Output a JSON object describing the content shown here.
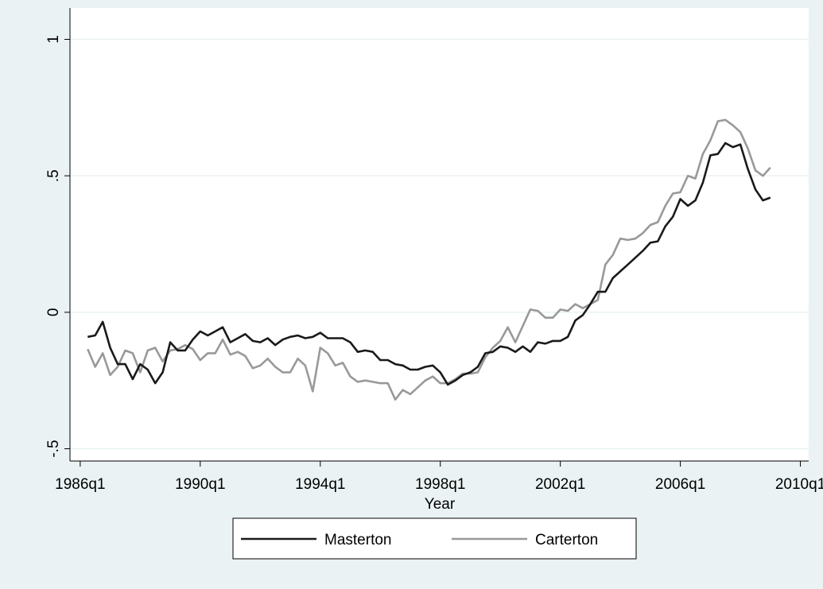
{
  "chart_data": {
    "type": "line",
    "x_label": "Year",
    "x": [
      "1986q2",
      "1986q3",
      "1986q4",
      "1987q1",
      "1987q2",
      "1987q3",
      "1987q4",
      "1988q1",
      "1988q2",
      "1988q3",
      "1988q4",
      "1989q1",
      "1989q2",
      "1989q3",
      "1989q4",
      "1990q1",
      "1990q2",
      "1990q3",
      "1990q4",
      "1991q1",
      "1991q2",
      "1991q3",
      "1991q4",
      "1992q1",
      "1992q2",
      "1992q3",
      "1992q4",
      "1993q1",
      "1993q2",
      "1993q3",
      "1993q4",
      "1994q1",
      "1994q2",
      "1994q3",
      "1994q4",
      "1995q1",
      "1995q2",
      "1995q3",
      "1995q4",
      "1996q1",
      "1996q2",
      "1996q3",
      "1996q4",
      "1997q1",
      "1997q2",
      "1997q3",
      "1997q4",
      "1998q1",
      "1998q2",
      "1998q3",
      "1998q4",
      "1999q1",
      "1999q2",
      "1999q3",
      "1999q4",
      "2000q1",
      "2000q2",
      "2000q3",
      "2000q4",
      "2001q1",
      "2001q2",
      "2001q3",
      "2001q4",
      "2002q1",
      "2002q2",
      "2002q3",
      "2002q4",
      "2003q1",
      "2003q2",
      "2003q3",
      "2003q4",
      "2004q1",
      "2004q2",
      "2004q3",
      "2004q4",
      "2005q1",
      "2005q2",
      "2005q3",
      "2005q4",
      "2006q1",
      "2006q2",
      "2006q3",
      "2006q4",
      "2007q1",
      "2007q2",
      "2007q3",
      "2007q4",
      "2008q1",
      "2008q2",
      "2008q3",
      "2008q4",
      "2009q1"
    ],
    "series": [
      {
        "name": "Masterton",
        "color": "#1a1a1a",
        "values": [
          -0.09,
          -0.085,
          -0.035,
          -0.13,
          -0.19,
          -0.19,
          -0.245,
          -0.19,
          -0.21,
          -0.26,
          -0.22,
          -0.11,
          -0.14,
          -0.14,
          -0.1,
          -0.07,
          -0.085,
          -0.07,
          -0.055,
          -0.11,
          -0.095,
          -0.08,
          -0.105,
          -0.11,
          -0.095,
          -0.12,
          -0.1,
          -0.09,
          -0.085,
          -0.095,
          -0.09,
          -0.075,
          -0.095,
          -0.095,
          -0.095,
          -0.11,
          -0.145,
          -0.14,
          -0.145,
          -0.175,
          -0.175,
          -0.19,
          -0.195,
          -0.21,
          -0.21,
          -0.2,
          -0.195,
          -0.22,
          -0.265,
          -0.25,
          -0.23,
          -0.22,
          -0.2,
          -0.15,
          -0.145,
          -0.125,
          -0.13,
          -0.145,
          -0.125,
          -0.145,
          -0.11,
          -0.115,
          -0.105,
          -0.105,
          -0.09,
          -0.03,
          -0.01,
          0.03,
          0.075,
          0.075,
          0.125,
          0.15,
          0.175,
          0.2,
          0.225,
          0.255,
          0.26,
          0.315,
          0.35,
          0.415,
          0.39,
          0.41,
          0.475,
          0.575,
          0.58,
          0.62,
          0.605,
          0.615,
          0.525,
          0.45,
          0.41,
          0.42
        ]
      },
      {
        "name": "Carterton",
        "color": "#999999",
        "values": [
          -0.135,
          -0.2,
          -0.15,
          -0.23,
          -0.2,
          -0.14,
          -0.15,
          -0.22,
          -0.14,
          -0.13,
          -0.18,
          -0.14,
          -0.135,
          -0.12,
          -0.135,
          -0.175,
          -0.15,
          -0.15,
          -0.1,
          -0.155,
          -0.145,
          -0.16,
          -0.205,
          -0.195,
          -0.17,
          -0.2,
          -0.22,
          -0.22,
          -0.17,
          -0.195,
          -0.29,
          -0.13,
          -0.15,
          -0.195,
          -0.185,
          -0.235,
          -0.255,
          -0.25,
          -0.255,
          -0.26,
          -0.26,
          -0.32,
          -0.285,
          -0.3,
          -0.275,
          -0.25,
          -0.235,
          -0.26,
          -0.26,
          -0.245,
          -0.225,
          -0.225,
          -0.22,
          -0.165,
          -0.13,
          -0.105,
          -0.055,
          -0.11,
          -0.05,
          0.01,
          0.005,
          -0.02,
          -0.02,
          0.01,
          0.005,
          0.03,
          0.015,
          0.03,
          0.045,
          0.175,
          0.21,
          0.27,
          0.265,
          0.27,
          0.29,
          0.32,
          0.33,
          0.39,
          0.435,
          0.44,
          0.5,
          0.49,
          0.58,
          0.63,
          0.7,
          0.705,
          0.685,
          0.66,
          0.6,
          0.52,
          0.5,
          0.53
        ]
      }
    ],
    "xlim": [
      "1985q3",
      "2010q2"
    ],
    "xticks": [
      "1986q1",
      "1990q1",
      "1994q1",
      "1998q1",
      "2002q1",
      "2006q1",
      "2010q1"
    ],
    "ylim": [
      -0.545,
      1.115
    ],
    "yticks": [
      {
        "value": -0.5,
        "label": "-.5"
      },
      0,
      {
        "value": 0.5,
        "label": ".5"
      },
      1
    ],
    "grid": true
  }
}
